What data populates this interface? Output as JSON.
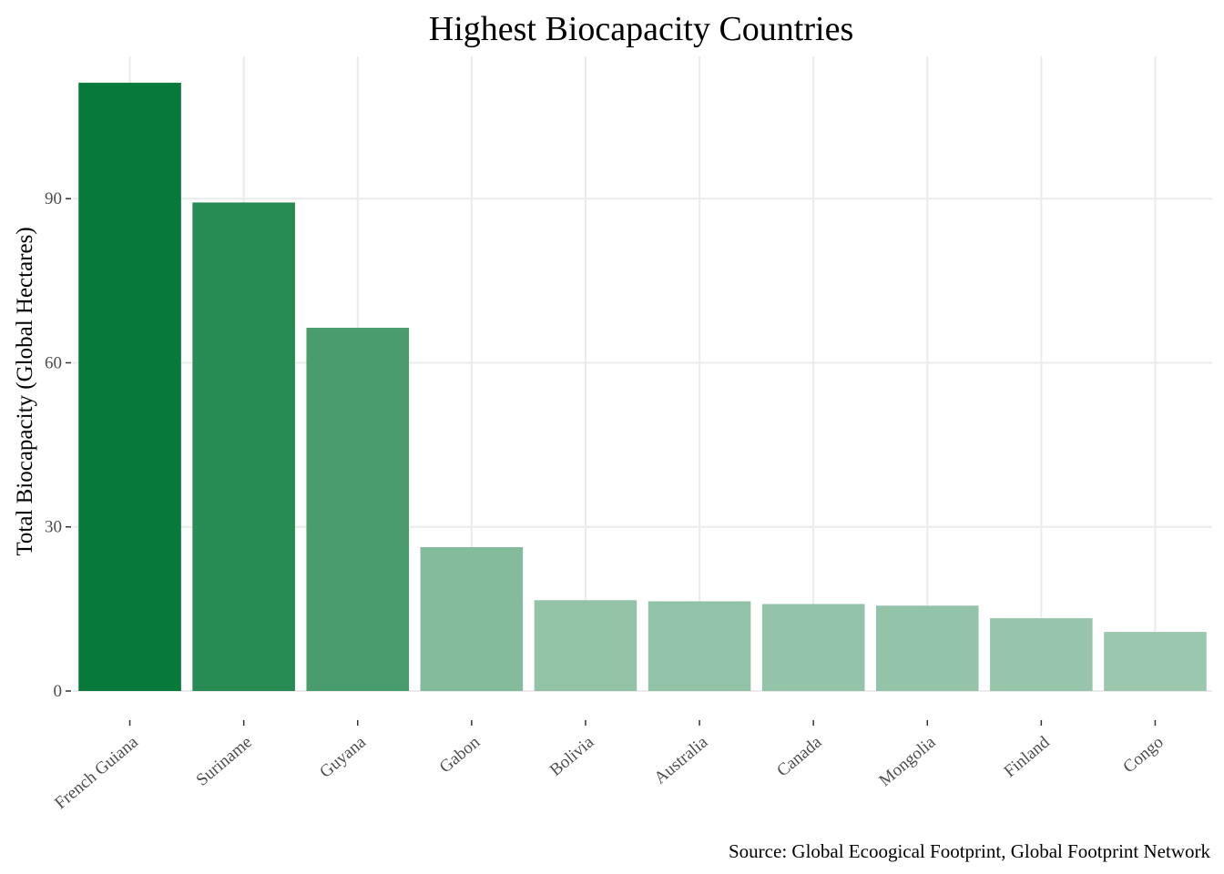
{
  "chart_data": {
    "type": "bar",
    "title": "Highest Biocapacity Countries",
    "xlabel": "",
    "ylabel": "Total Biocapacity (Global Hectares)",
    "caption": "Source: Global Ecoogical Footprint, Global Footprint Network",
    "categories": [
      "French Guiana",
      "Suriname",
      "Guyana",
      "Gabon",
      "Bolivia",
      "Australia",
      "Canada",
      "Mongolia",
      "Finland",
      "Congo"
    ],
    "values": [
      111.2,
      89.3,
      66.4,
      26.3,
      16.6,
      16.4,
      15.9,
      15.6,
      13.3,
      10.8
    ],
    "yticks": [
      0,
      30,
      60,
      90
    ],
    "ylim": [
      0,
      116
    ],
    "grid": true,
    "legend": "none",
    "colors": {
      "gradient_high": "#077a3b",
      "gradient_low": "#9ac7ae",
      "grid": "#ebebeb",
      "tick_label": "#4d4d4d",
      "tick": "#333333"
    }
  }
}
